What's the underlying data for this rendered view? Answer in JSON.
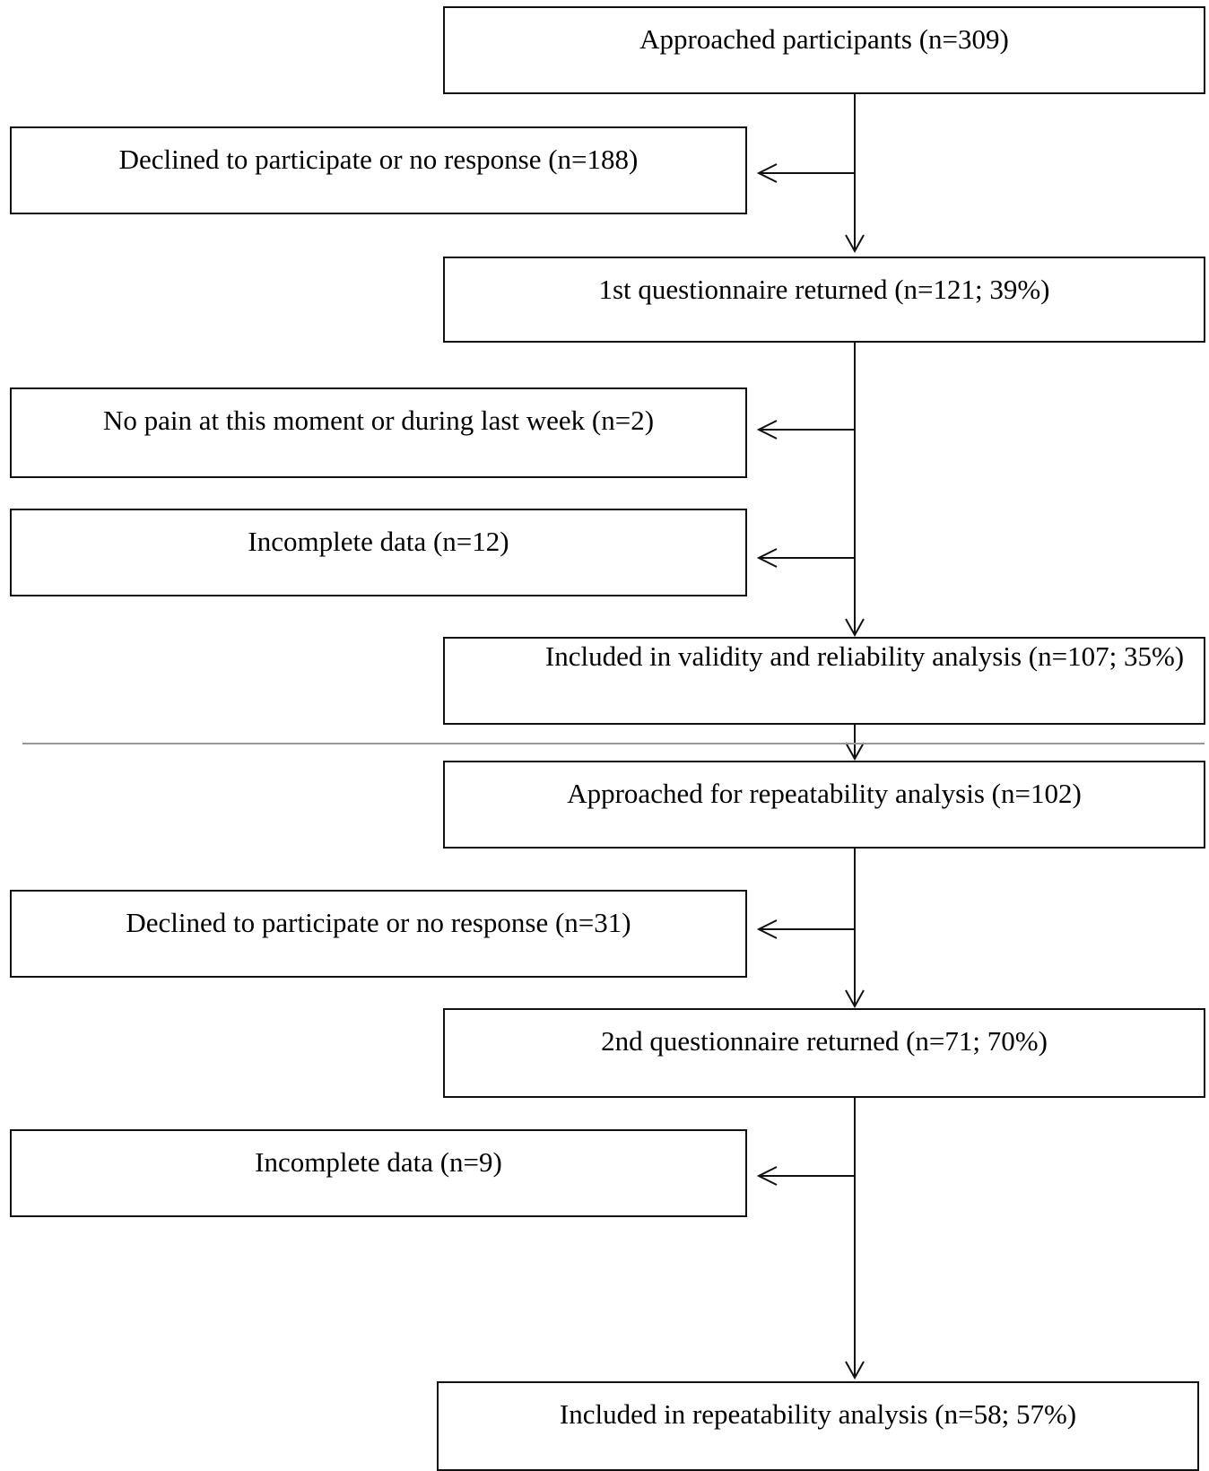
{
  "flow": {
    "approached": "Approached participants (n=309)",
    "declined_first": "Declined to participate or no response (n=188)",
    "first_returned": "1st questionnaire returned (n=121; 39%)",
    "no_pain": "No pain at this moment or during last week (n=2)",
    "incomplete_first": "Incomplete data (n=12)",
    "included_validity": "Included in validity and reliability analysis (n=107; 35%)",
    "approached_repeat": "Approached for repeatability analysis (n=102)",
    "declined_second": "Declined to participate or no response (n=31)",
    "second_returned": "2nd questionnaire returned (n=71; 70%)",
    "incomplete_second": "Incomplete data (n=9)",
    "included_repeat": "Included in repeatability analysis (n=58; 57%)"
  },
  "colors": {
    "line": "#111111",
    "divider": "#999999",
    "background": "#ffffff"
  }
}
